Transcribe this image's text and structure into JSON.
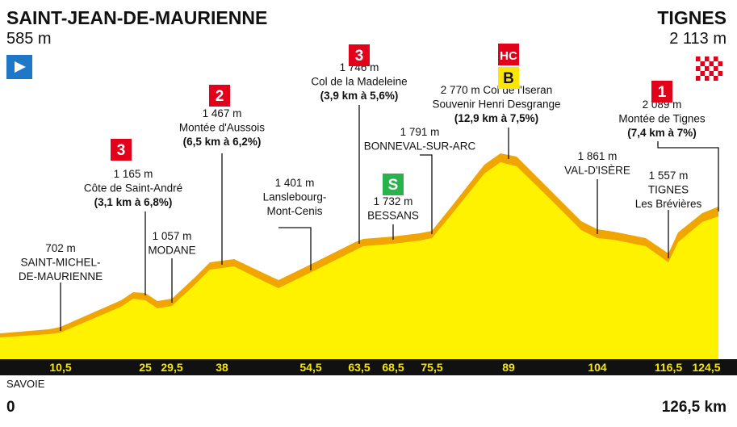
{
  "start": {
    "name": "SAINT-JEAN-DE-MAURIENNE",
    "altitude": "585 m"
  },
  "finish": {
    "name": "TIGNES",
    "altitude": "2 113 m"
  },
  "points": [
    {
      "lines": [
        "702 m",
        "SAINT-MICHEL-",
        "DE-MAURIENNE"
      ]
    },
    {
      "lines": [
        "1 165 m",
        "Côte de Saint-André",
        "(3,1 km à 6,8%)"
      ],
      "badges": [
        {
          "text": "3",
          "color": "#e2001a"
        }
      ]
    },
    {
      "lines": [
        "1 057 m",
        "MODANE"
      ]
    },
    {
      "lines": [
        "1 467 m",
        "Montée d'Aussois",
        "(6,5 km à 6,2%)"
      ],
      "badges": [
        {
          "text": "2",
          "color": "#e2001a"
        }
      ]
    },
    {
      "lines": [
        "1 401 m",
        "Lanslebourg-",
        "Mont-Cenis"
      ]
    },
    {
      "lines": [
        "1 746 m",
        "Col de la Madeleine",
        "(3,9 km à 5,6%)"
      ],
      "badges": [
        {
          "text": "3",
          "color": "#e2001a"
        }
      ]
    },
    {
      "lines": [
        "1 732 m",
        "BESSANS"
      ],
      "badges": [
        {
          "text": "S",
          "color": "#2bb24c"
        }
      ]
    },
    {
      "lines": [
        "1 791 m",
        "BONNEVAL-SUR-ARC"
      ]
    },
    {
      "lines": [
        "2 770 m Col de l'Iseran",
        "Souvenir Henri Desgrange",
        "(12,9 km à 7,5%)"
      ],
      "badges": [
        {
          "text": "HC",
          "color": "#e2001a"
        },
        {
          "text": "B",
          "color": "#ffe600"
        }
      ]
    },
    {
      "lines": [
        "1 861 m",
        "VAL-D'ISÈRE"
      ]
    },
    {
      "lines": [
        "2 089 m",
        "Montée de Tignes",
        "(7,4 km à 7%)"
      ],
      "badges": [
        {
          "text": "1",
          "color": "#e2001a"
        }
      ]
    },
    {
      "lines": [
        "1 557 m",
        "TIGNES",
        "Les Brévières"
      ]
    }
  ],
  "km_markers": [
    "10,5",
    "25",
    "29,5",
    "38",
    "54,5",
    "63,5",
    "68,5",
    "75,5",
    "89",
    "104",
    "116,5",
    "124,5"
  ],
  "region": "SAVOIE",
  "distance_start": "0",
  "distance_end": "126,5 km"
}
